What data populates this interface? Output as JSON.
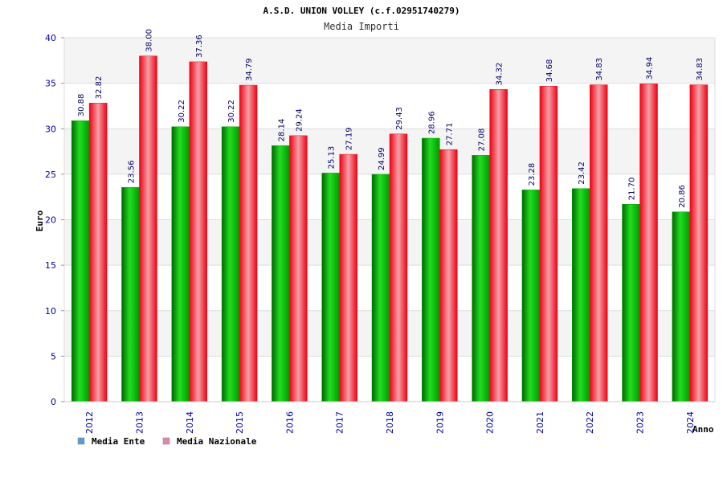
{
  "chart_data": {
    "type": "bar",
    "title": "A.S.D. UNION VOLLEY (c.f.02951740279)",
    "subtitle": "Media Importi",
    "ylabel": "Euro",
    "xlabel": "Anno",
    "ylim": [
      0,
      40
    ],
    "yticks": [
      0,
      5,
      10,
      15,
      20,
      25,
      30,
      35,
      40
    ],
    "categories": [
      "2012",
      "2013",
      "2014",
      "2015",
      "2016",
      "2017",
      "2018",
      "2019",
      "2020",
      "2021",
      "2022",
      "2023",
      "2024"
    ],
    "series": [
      {
        "name": "Media Ente",
        "color": "#00aa00",
        "legend_color": "#5b9bd5",
        "values": [
          30.88,
          23.56,
          30.22,
          30.22,
          28.14,
          25.13,
          24.99,
          28.96,
          27.08,
          23.28,
          23.42,
          21.7,
          20.86
        ],
        "labels": [
          "30.88",
          "23.56",
          "30.22",
          "30.22",
          "28.14",
          "25.13",
          "24.99",
          "28.96",
          "27.08",
          "23.28",
          "23.42",
          "21.70",
          "20.86"
        ]
      },
      {
        "name": "Media Nazionale",
        "color": "#ee1122",
        "legend_color": "#dd88aa",
        "values": [
          32.82,
          38.0,
          37.36,
          34.79,
          29.24,
          27.19,
          29.43,
          27.71,
          34.32,
          34.68,
          34.83,
          34.94,
          34.83
        ],
        "labels": [
          "32.82",
          "38.00",
          "37.36",
          "34.79",
          "29.24",
          "27.19",
          "29.43",
          "27.71",
          "34.32",
          "34.68",
          "34.83",
          "34.94",
          "34.83"
        ]
      }
    ],
    "grid": true,
    "legend_position": "bottom-left"
  }
}
